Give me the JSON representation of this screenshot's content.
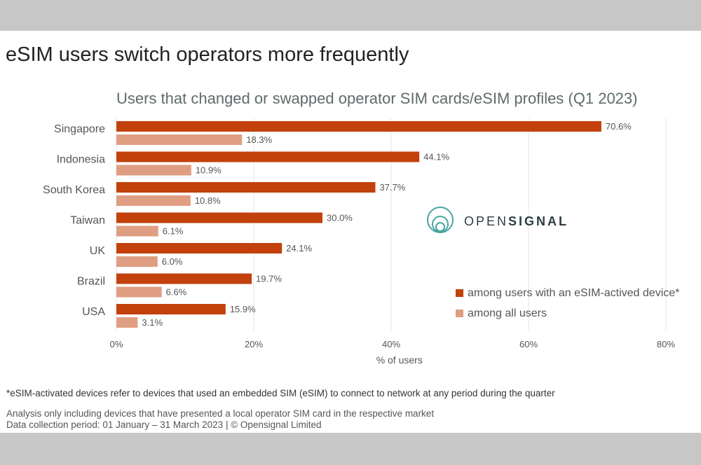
{
  "headline": "eSIM users switch operators more frequently",
  "chart_data": {
    "type": "bar",
    "orientation": "horizontal",
    "title": "Users that changed or swapped operator SIM cards/eSIM profiles (Q1 2023)",
    "categories": [
      "Singapore",
      "Indonesia",
      "South Korea",
      "Taiwan",
      "UK",
      "Brazil",
      "USA"
    ],
    "series": [
      {
        "name": "among users with an eSIM-actived device*",
        "color": "#c2410c",
        "values": [
          70.6,
          44.1,
          37.7,
          30.0,
          24.1,
          19.7,
          15.9
        ],
        "labels": [
          "70.6%",
          "44.1%",
          "37.7%",
          "30.0%",
          "24.1%",
          "19.7%",
          "15.9%"
        ]
      },
      {
        "name": "among all users",
        "color": "#df9e82",
        "values": [
          18.3,
          10.9,
          10.8,
          6.1,
          6.0,
          6.6,
          3.1
        ],
        "labels": [
          "18.3%",
          "10.9%",
          "10.8%",
          "6.1%",
          "6.0%",
          "6.6%",
          "3.1%"
        ]
      }
    ],
    "xlabel": "% of users",
    "xlim": [
      0,
      80
    ],
    "xticks": [
      0,
      20,
      40,
      60,
      80
    ],
    "xtick_labels": [
      "0%",
      "20%",
      "40%",
      "60%",
      "80%"
    ],
    "grid": true,
    "legend_position": "right"
  },
  "logo": {
    "light": "OPEN",
    "bold": "SIGNAL"
  },
  "footnote": "*eSIM-activated devices refer to devices that used an embedded SIM (eSIM) to connect to network at any period during the quarter",
  "source_line_1": "Analysis only including devices that have presented a local operator SIM card in the respective market",
  "source_line_2": "Data collection period: 01 January – 31 March 2023  | © Opensignal Limited"
}
